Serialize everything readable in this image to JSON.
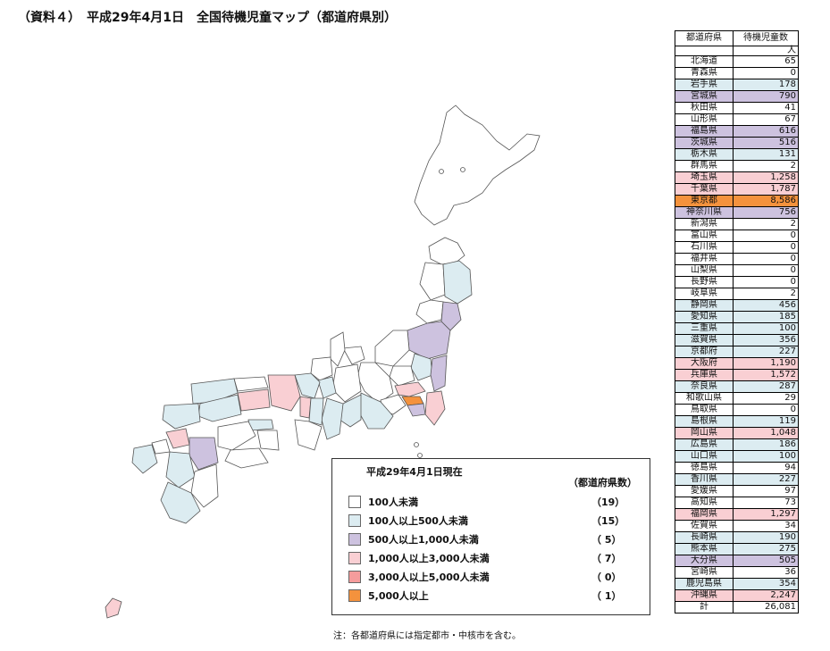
{
  "title": "（資料４）　平成29年4月1日　全国待機児童マップ（都道府県別）",
  "colors": {
    "c0": "#ffffff",
    "c1": "#dcecf1",
    "c2": "#cdc2df",
    "c3": "#f9cfd3",
    "c4": "#f59c9c",
    "c5": "#f4923d"
  },
  "legend": {
    "title": "平成29年4月1日現在",
    "count_header": "（都道府県数）",
    "items": [
      {
        "label": "100人未満",
        "count": "（19）",
        "color": "c0"
      },
      {
        "label": "100人以上500人未満",
        "count": "（15）",
        "color": "c1"
      },
      {
        "label": "500人以上1,000人未満",
        "count": "（ 5）",
        "color": "c2"
      },
      {
        "label": "1,000人以上3,000人未満",
        "count": "（ 7）",
        "color": "c3"
      },
      {
        "label": "3,000人以上5,000人未満",
        "count": "（ 0）",
        "color": "c4"
      },
      {
        "label": "5,000人以上",
        "count": "（ 1）",
        "color": "c5"
      }
    ]
  },
  "note": "注：各都道府県には指定都市・中核市を含む。",
  "chart_data": {
    "type": "table",
    "columns": [
      "都道府県",
      "待機児童数"
    ],
    "unit": "人",
    "rows": [
      {
        "name": "北海道",
        "value": "65",
        "color": "c0"
      },
      {
        "name": "青森県",
        "value": "0",
        "color": "c0"
      },
      {
        "name": "岩手県",
        "value": "178",
        "color": "c1"
      },
      {
        "name": "宮城県",
        "value": "790",
        "color": "c2"
      },
      {
        "name": "秋田県",
        "value": "41",
        "color": "c0"
      },
      {
        "name": "山形県",
        "value": "67",
        "color": "c0"
      },
      {
        "name": "福島県",
        "value": "616",
        "color": "c2"
      },
      {
        "name": "茨城県",
        "value": "516",
        "color": "c2"
      },
      {
        "name": "栃木県",
        "value": "131",
        "color": "c1"
      },
      {
        "name": "群馬県",
        "value": "2",
        "color": "c0"
      },
      {
        "name": "埼玉県",
        "value": "1,258",
        "color": "c3"
      },
      {
        "name": "千葉県",
        "value": "1,787",
        "color": "c3"
      },
      {
        "name": "東京都",
        "value": "8,586",
        "color": "c5"
      },
      {
        "name": "神奈川県",
        "value": "756",
        "color": "c2"
      },
      {
        "name": "新潟県",
        "value": "2",
        "color": "c0"
      },
      {
        "name": "富山県",
        "value": "0",
        "color": "c0"
      },
      {
        "name": "石川県",
        "value": "0",
        "color": "c0"
      },
      {
        "name": "福井県",
        "value": "0",
        "color": "c0"
      },
      {
        "name": "山梨県",
        "value": "0",
        "color": "c0"
      },
      {
        "name": "長野県",
        "value": "0",
        "color": "c0"
      },
      {
        "name": "岐阜県",
        "value": "2",
        "color": "c0"
      },
      {
        "name": "静岡県",
        "value": "456",
        "color": "c1"
      },
      {
        "name": "愛知県",
        "value": "185",
        "color": "c1"
      },
      {
        "name": "三重県",
        "value": "100",
        "color": "c1"
      },
      {
        "name": "滋賀県",
        "value": "356",
        "color": "c1"
      },
      {
        "name": "京都府",
        "value": "227",
        "color": "c1"
      },
      {
        "name": "大阪府",
        "value": "1,190",
        "color": "c3"
      },
      {
        "name": "兵庫県",
        "value": "1,572",
        "color": "c3"
      },
      {
        "name": "奈良県",
        "value": "287",
        "color": "c1"
      },
      {
        "name": "和歌山県",
        "value": "29",
        "color": "c0"
      },
      {
        "name": "鳥取県",
        "value": "0",
        "color": "c0"
      },
      {
        "name": "島根県",
        "value": "119",
        "color": "c1"
      },
      {
        "name": "岡山県",
        "value": "1,048",
        "color": "c3"
      },
      {
        "name": "広島県",
        "value": "186",
        "color": "c1"
      },
      {
        "name": "山口県",
        "value": "100",
        "color": "c1"
      },
      {
        "name": "徳島県",
        "value": "94",
        "color": "c0"
      },
      {
        "name": "香川県",
        "value": "227",
        "color": "c1"
      },
      {
        "name": "愛媛県",
        "value": "97",
        "color": "c0"
      },
      {
        "name": "高知県",
        "value": "73",
        "color": "c0"
      },
      {
        "name": "福岡県",
        "value": "1,297",
        "color": "c3"
      },
      {
        "name": "佐賀県",
        "value": "34",
        "color": "c0"
      },
      {
        "name": "長崎県",
        "value": "190",
        "color": "c1"
      },
      {
        "name": "熊本県",
        "value": "275",
        "color": "c1"
      },
      {
        "name": "大分県",
        "value": "505",
        "color": "c2"
      },
      {
        "name": "宮崎県",
        "value": "36",
        "color": "c0"
      },
      {
        "name": "鹿児島県",
        "value": "354",
        "color": "c1"
      },
      {
        "name": "沖縄県",
        "value": "2,247",
        "color": "c3"
      }
    ],
    "total": {
      "name": "計",
      "value": "26,081"
    }
  }
}
